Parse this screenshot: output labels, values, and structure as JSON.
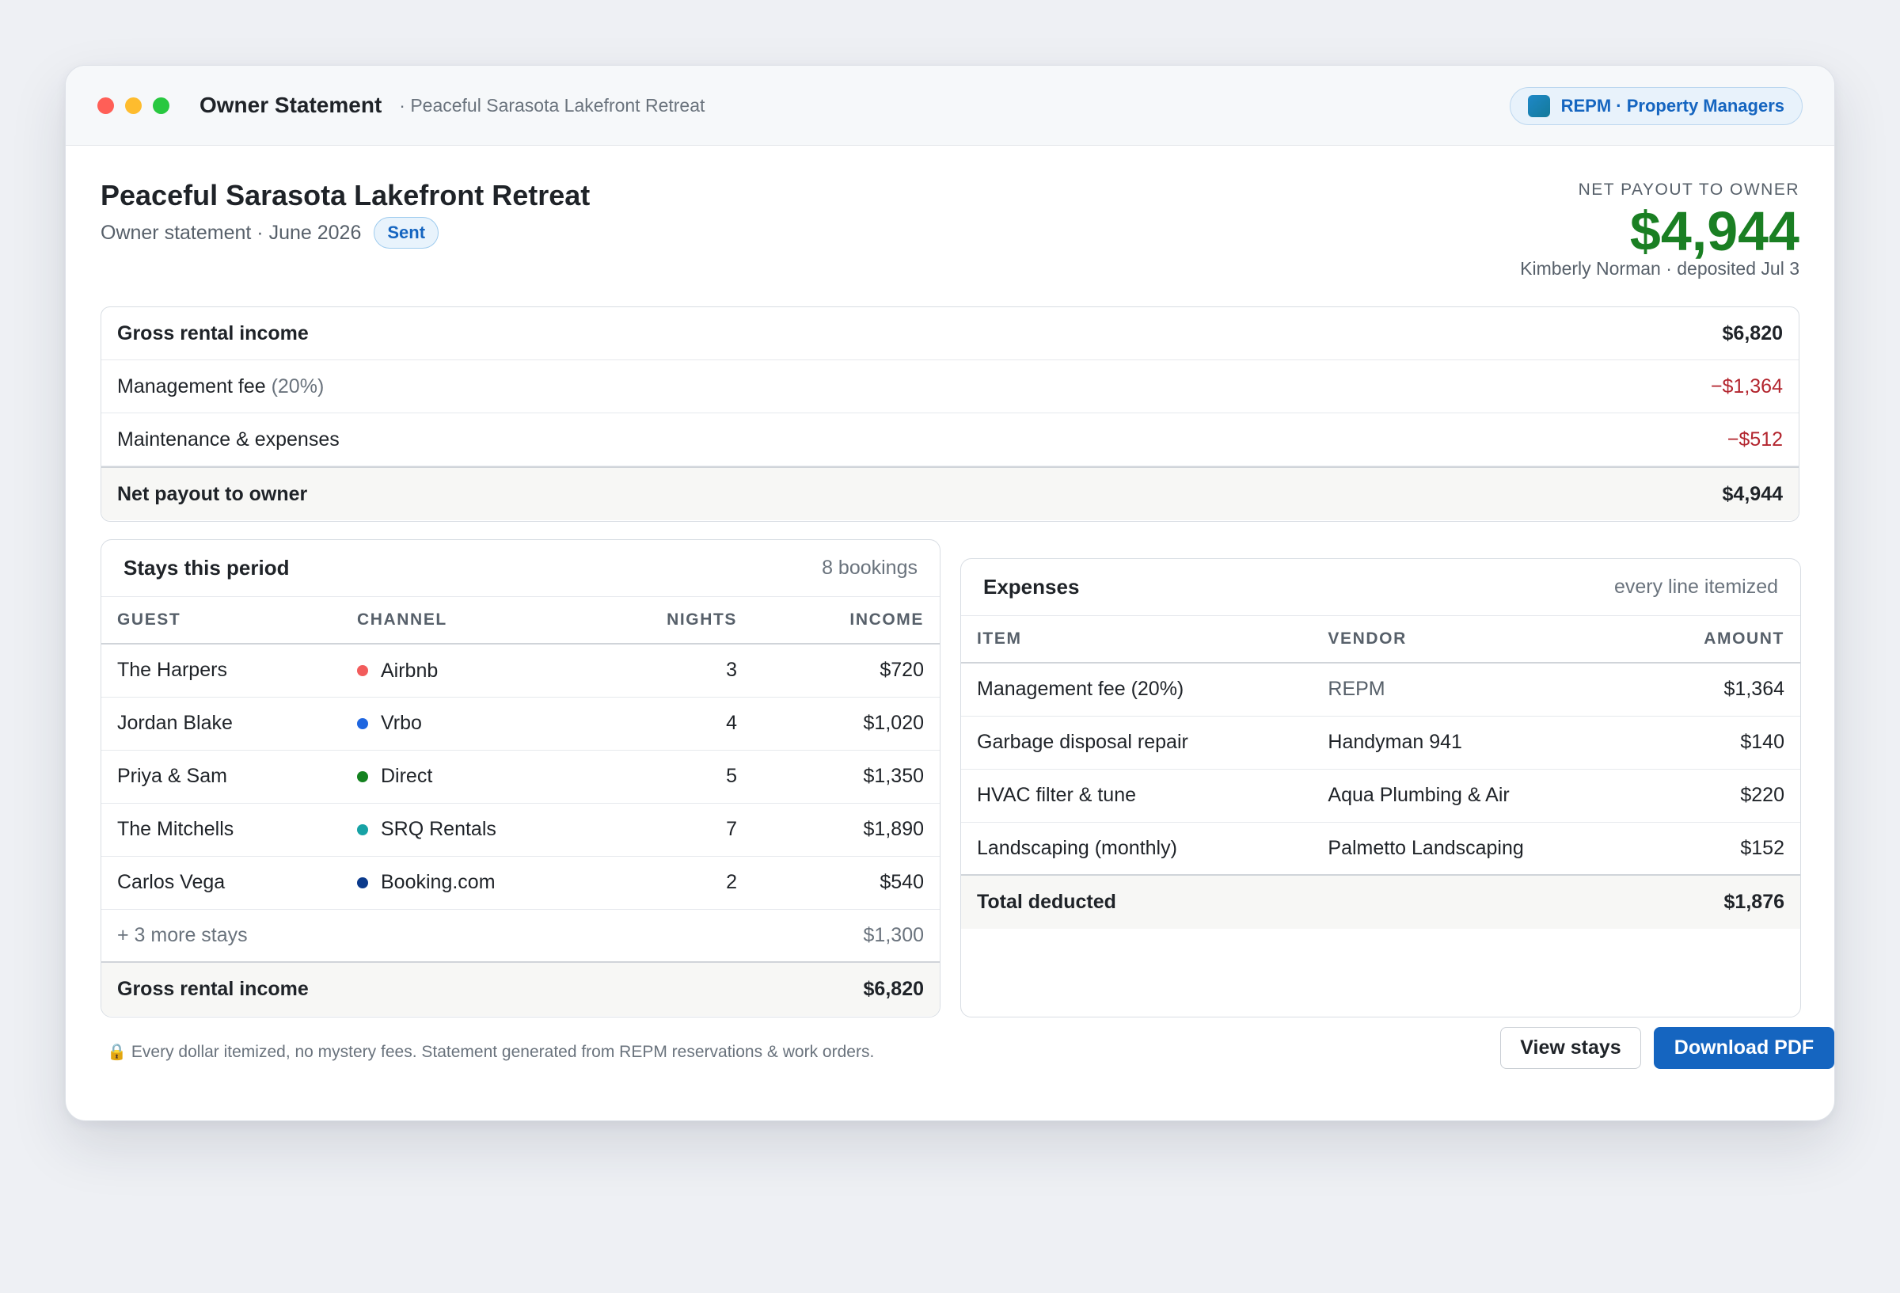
{
  "window": {
    "title": "Owner Statement",
    "subtitle": "· Peaceful Sarasota Lakefront Retreat",
    "brand": "REPM · Property Managers"
  },
  "header": {
    "property_name": "Peaceful Sarasota Lakefront Retreat",
    "statement_label": "Owner statement · June 2026",
    "status_badge": "Sent",
    "net_label": "NET PAYOUT TO OWNER",
    "net_amount": "$4,944",
    "net_meta": "Kimberly Norman · deposited Jul 3"
  },
  "summary": {
    "gross_label": "Gross rental income",
    "gross_value": "$6,820",
    "mgmt_label": "Management fee",
    "mgmt_pct": "(20%)",
    "mgmt_value": "−$1,364",
    "maint_label": "Maintenance & expenses",
    "maint_value": "−$512",
    "net_label": "Net payout to owner",
    "net_value": "$4,944"
  },
  "stays": {
    "title": "Stays this period",
    "count": "8 bookings",
    "columns": [
      "GUEST",
      "CHANNEL",
      "NIGHTS",
      "INCOME"
    ],
    "rows": [
      {
        "guest": "The Harpers",
        "channel": "Airbnb",
        "channel_color": "#f25c5c",
        "nights": "3",
        "income": "$720"
      },
      {
        "guest": "Jordan Blake",
        "channel": "Vrbo",
        "channel_color": "#1f66e0",
        "nights": "4",
        "income": "$1,020"
      },
      {
        "guest": "Priya & Sam",
        "channel": "Direct",
        "channel_color": "#13821f",
        "nights": "5",
        "income": "$1,350"
      },
      {
        "guest": "The Mitchells",
        "channel": "SRQ Rentals",
        "channel_color": "#17a2a5",
        "nights": "7",
        "income": "$1,890"
      },
      {
        "guest": "Carlos Vega",
        "channel": "Booking.com",
        "channel_color": "#0b3a8c",
        "nights": "2",
        "income": "$540"
      }
    ],
    "more_label": "+ 3 more stays",
    "more_value": "$1,300",
    "total_label": "Gross rental income",
    "total_value": "$6,820"
  },
  "expenses": {
    "title": "Expenses",
    "note": "every line itemized",
    "columns": [
      "ITEM",
      "VENDOR",
      "AMOUNT"
    ],
    "rows": [
      {
        "item": "Management fee (20%)",
        "vendor": "REPM",
        "amount": "$1,364"
      },
      {
        "item": "Garbage disposal repair",
        "vendor": "Handyman 941",
        "amount": "$140"
      },
      {
        "item": "HVAC filter & tune",
        "vendor": "Aqua Plumbing & Air",
        "amount": "$220"
      },
      {
        "item": "Landscaping (monthly)",
        "vendor": "Palmetto Landscaping",
        "amount": "$152"
      }
    ],
    "total_label": "Total deducted",
    "total_value": "$1,876"
  },
  "footer": {
    "note": "Every dollar itemized, no mystery fees. Statement generated from REPM reservations & work orders.",
    "view_button": "View stays",
    "download_button": "Download PDF"
  }
}
